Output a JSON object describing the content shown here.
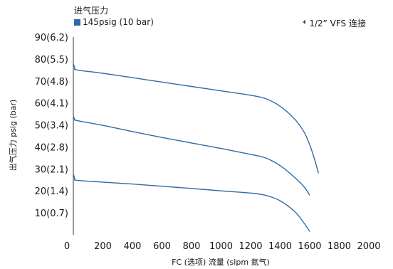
{
  "chart_data": {
    "type": "line",
    "title": "",
    "xlabel": "FC (选项) 流量 (slpm 氮气)",
    "ylabel": "出气压力 psig (bar)",
    "xlim": [
      0,
      2000
    ],
    "ylim": [
      0,
      90
    ],
    "x_ticks": [
      0,
      200,
      400,
      600,
      800,
      1000,
      1200,
      1400,
      1600,
      1800,
      2000
    ],
    "y_ticks": [
      {
        "value": 10,
        "label": "10(0.7)"
      },
      {
        "value": 20,
        "label": "20(1.4)"
      },
      {
        "value": 30,
        "label": "30(2.1)"
      },
      {
        "value": 40,
        "label": "40(2.8)"
      },
      {
        "value": 50,
        "label": "50(3.4)"
      },
      {
        "value": 60,
        "label": "60(4.1)"
      },
      {
        "value": 70,
        "label": "70(4.8)"
      },
      {
        "value": 80,
        "label": "80(5.5)"
      },
      {
        "value": 90,
        "label": "90(6.2)"
      }
    ],
    "legend_title": "进气压力",
    "legend": [
      {
        "label": "145psig (10 bar)",
        "color": "#2e6ca8"
      }
    ],
    "annotation": "* 1/2”  VFS 连接",
    "grid": false,
    "series": [
      {
        "color": "#2e6ca8",
        "x": [
          0,
          10,
          25,
          200,
          400,
          600,
          800,
          1000,
          1200,
          1300,
          1400,
          1500,
          1560,
          1600,
          1630,
          1660
        ],
        "y": [
          78,
          76,
          75,
          73.5,
          71.5,
          69.5,
          67.5,
          65.5,
          63.5,
          62,
          58.5,
          52.5,
          47,
          41,
          35,
          28
        ]
      },
      {
        "color": "#2e6ca8",
        "x": [
          0,
          10,
          25,
          200,
          400,
          600,
          800,
          1000,
          1200,
          1300,
          1400,
          1500,
          1560,
          1600
        ],
        "y": [
          54,
          52.5,
          52,
          49.8,
          47,
          44.3,
          41.8,
          39.3,
          36.6,
          35,
          31.5,
          26,
          22,
          18
        ]
      },
      {
        "color": "#2e6ca8",
        "x": [
          0,
          10,
          25,
          200,
          400,
          600,
          800,
          1000,
          1200,
          1300,
          1400,
          1500,
          1560,
          1600
        ],
        "y": [
          28,
          25.5,
          24.8,
          24,
          23.1,
          22.1,
          21.1,
          20,
          19,
          18,
          15.5,
          10.5,
          5.5,
          1.5
        ]
      }
    ]
  }
}
